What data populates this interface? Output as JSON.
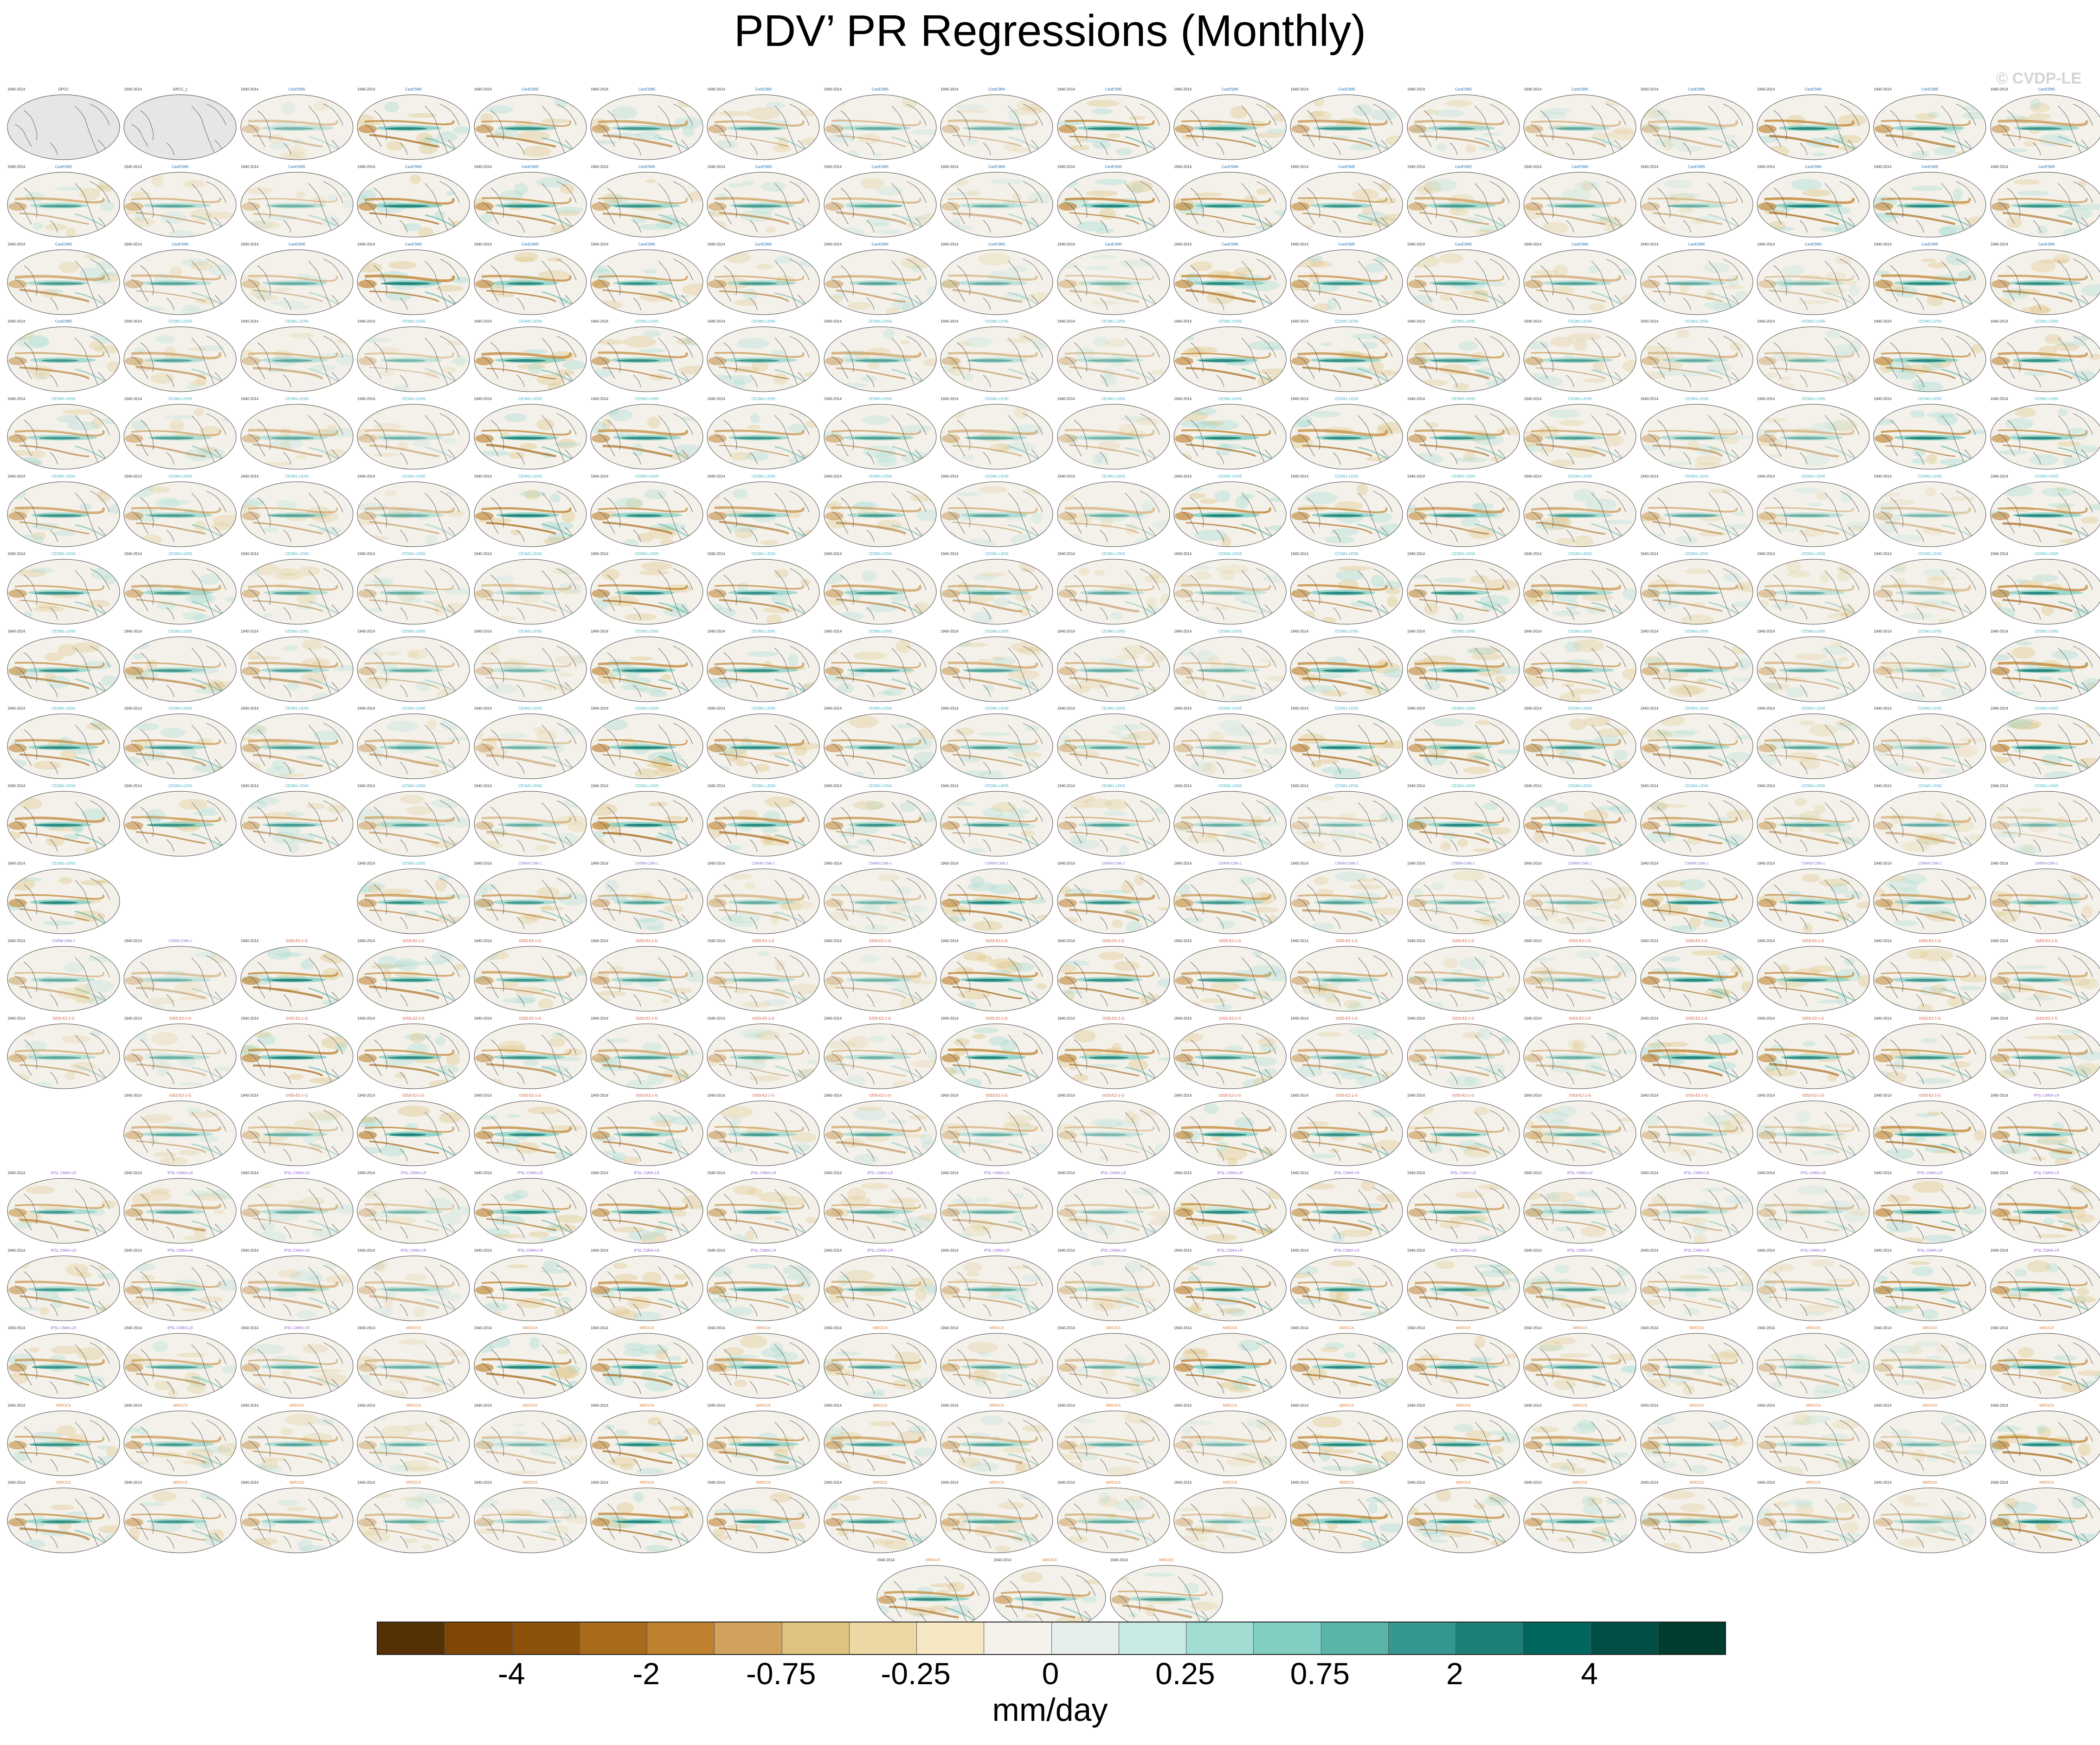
{
  "title": "PDV’ PR Regressions (Monthly)",
  "watermark": "© CVDP-LE",
  "grid": {
    "columns": 18,
    "rows_in_main_grid": 19,
    "empty_cells": [
      [
        10,
        1
      ],
      [
        10,
        2
      ],
      [
        13,
        0
      ]
    ],
    "bottom_row_cells": 3
  },
  "panel_template": {
    "years_label": "1940-2014",
    "first_panels": [
      "GPCC",
      "GPCC_1"
    ],
    "model_groups": [
      {
        "name": "CanESM5",
        "color": "#1f6fb0",
        "count": 53
      },
      {
        "name": "CESM1-LENS",
        "color": "#40b0c0",
        "count": 127
      },
      {
        "name": "CNRM-CM6-1",
        "color": "#7a7ad0",
        "count": 16
      },
      {
        "name": "GISS-E2-1-G",
        "color": "#d05030",
        "count": 50
      },
      {
        "name": "IPSL-CM6A-LR",
        "color": "#9060d0",
        "count": 40
      },
      {
        "name": "MIROC6",
        "color": "#e07a30",
        "count": 54
      }
    ]
  },
  "colorbar": {
    "colors": [
      "#543005",
      "#7f4706",
      "#8c510a",
      "#a96a1c",
      "#bf812d",
      "#d0a25c",
      "#dfc27d",
      "#edd8a5",
      "#f6e8c3",
      "#f5f2ec",
      "#e6eeec",
      "#c7eae5",
      "#a3dcd3",
      "#80cdc1",
      "#5ab4a8",
      "#35978f",
      "#1b7f76",
      "#01665e",
      "#004e44",
      "#003c30"
    ],
    "tick_labels": [
      "-4",
      "-2",
      "-0.75",
      "-0.25",
      "0",
      "0.25",
      "0.75",
      "2",
      "4"
    ],
    "units": "mm/day"
  }
}
